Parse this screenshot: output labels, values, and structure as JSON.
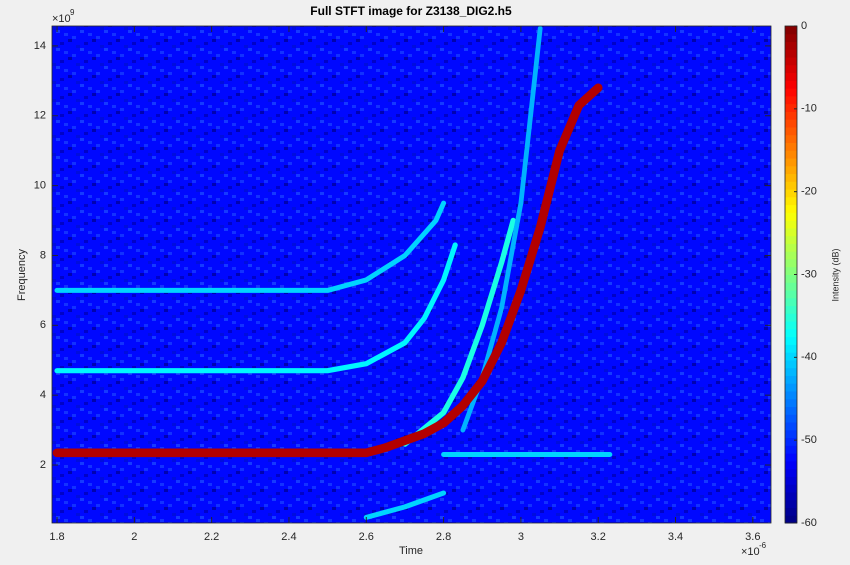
{
  "chart_data": {
    "type": "spectrogram",
    "title": "Full STFT image for Z3138_DIG2.h5",
    "x_label": "Time",
    "y_label": "Frequency",
    "x_exponent": {
      "base": "×10",
      "power": "-6"
    },
    "y_exponent": {
      "base": "×10",
      "power": "9"
    },
    "xlim": [
      1.787,
      3.647
    ],
    "ylim": [
      0.34,
      14.57
    ],
    "xticks": [
      1.8,
      2,
      2.2,
      2.4,
      2.6,
      2.8,
      3,
      3.2,
      3.4,
      3.6
    ],
    "yticks": [
      2,
      4,
      6,
      8,
      10,
      12,
      14
    ],
    "grid": false,
    "colormap": "jet",
    "background_level": -52,
    "colorbar": {
      "label": "Intensity (dB)",
      "clim": [
        -60,
        0
      ],
      "ticks": [
        0,
        -10,
        -20,
        -30,
        -40,
        -50,
        -60
      ]
    },
    "series": [
      {
        "level": -40,
        "x": [
          1.8,
          2.5,
          2.6,
          2.7,
          2.78,
          2.8
        ],
        "values": [
          7.0,
          7.0,
          7.3,
          8.0,
          9.0,
          9.5
        ]
      },
      {
        "level": -38,
        "x": [
          1.8,
          2.5,
          2.6,
          2.7,
          2.75,
          2.8,
          2.83
        ],
        "values": [
          4.7,
          4.7,
          4.9,
          5.5,
          6.2,
          7.3,
          8.3
        ]
      },
      {
        "level": -40,
        "x": [
          2.8,
          3.23
        ],
        "values": [
          2.3,
          2.3
        ]
      },
      {
        "level": -40,
        "x": [
          2.6,
          2.7,
          2.8
        ],
        "values": [
          0.5,
          0.8,
          1.2
        ]
      },
      {
        "level": -36,
        "x": [
          2.7,
          2.8,
          2.85,
          2.9,
          2.95,
          2.98
        ],
        "values": [
          2.6,
          3.5,
          4.5,
          6.0,
          7.8,
          9.0
        ]
      },
      {
        "level": -42,
        "x": [
          2.85,
          2.9,
          2.95,
          3.0,
          3.03,
          3.05
        ],
        "values": [
          3.0,
          4.5,
          6.5,
          9.5,
          12.5,
          14.5
        ]
      },
      {
        "level": -3,
        "x": [
          1.8,
          2.6,
          2.65,
          2.7,
          2.75,
          2.8,
          2.85,
          2.9,
          2.95,
          3.0,
          3.05,
          3.1,
          3.15,
          3.2
        ],
        "values": [
          2.35,
          2.35,
          2.5,
          2.7,
          2.9,
          3.2,
          3.7,
          4.4,
          5.5,
          7.0,
          8.8,
          11.0,
          12.3,
          12.8
        ]
      }
    ]
  }
}
